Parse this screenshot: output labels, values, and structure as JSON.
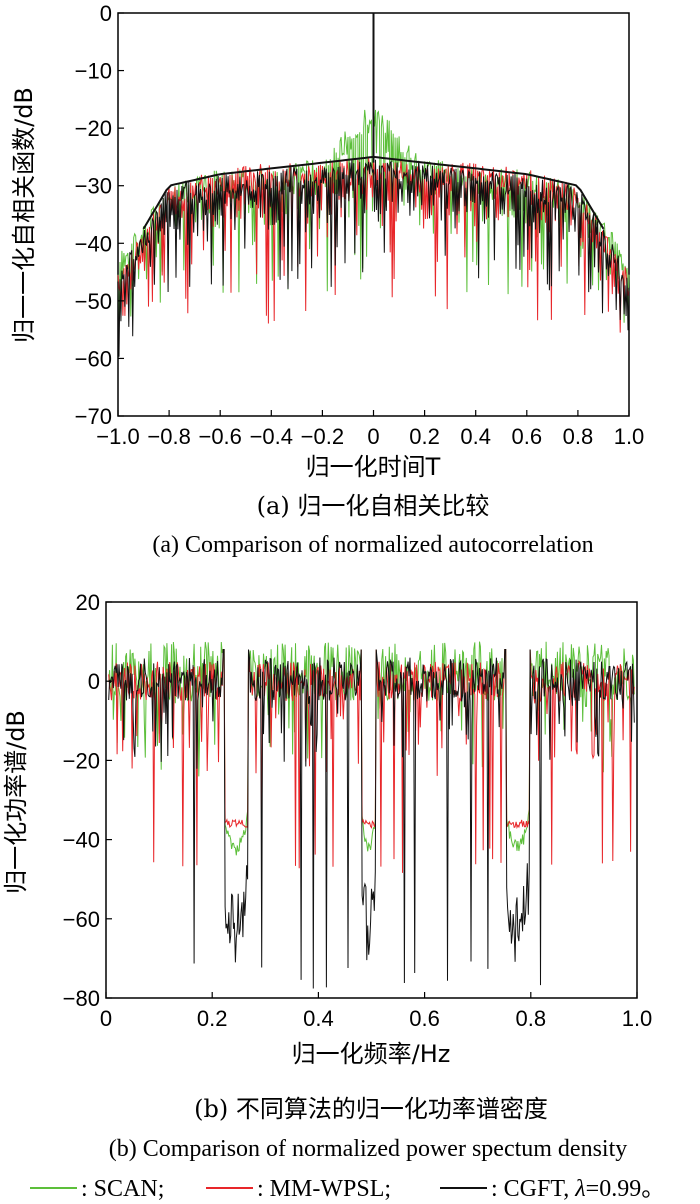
{
  "chart_data": [
    {
      "type": "line",
      "xlabel": "归一化时间T",
      "ylabel": "归一一化自相关函数/dB",
      "xlim": [
        -1.0,
        1.0
      ],
      "ylim": [
        -70,
        0
      ],
      "x_ticks": [
        "−1.0",
        "−0.8",
        "−0.6",
        "−0.4",
        "−0.2",
        "0",
        "0.2",
        "0.4",
        "0.6",
        "0.8",
        "1.0"
      ],
      "y_ticks": [
        "0",
        "−10",
        "−20",
        "−30",
        "−40",
        "−50",
        "−60",
        "−70"
      ],
      "caption_cn": "(a) 归一化自相关比较",
      "caption_en": "(a) Comparison of normalized autocorrelation",
      "series": [
        {
          "name": "SCAN",
          "color": "#5cbf3a",
          "x": [
            -1.0,
            -0.8,
            -0.6,
            -0.4,
            -0.2,
            0,
            0.2,
            0.4,
            0.6,
            0.8,
            1.0
          ],
          "upper": [
            -42,
            -30,
            -27,
            -27,
            -25,
            -15,
            -25,
            -27,
            -27,
            -30,
            -42
          ],
          "lower": [
            -58,
            -49,
            -49,
            -49,
            -52,
            -45,
            -53,
            -49,
            -49,
            -49,
            -58
          ]
        },
        {
          "name": "MM-WPSL",
          "color": "#e8262a",
          "x": [
            -1.0,
            -0.8,
            -0.6,
            -0.4,
            -0.2,
            0,
            0.2,
            0.4,
            0.6,
            0.8,
            1.0
          ],
          "upper": [
            -45,
            -30,
            -27,
            -26,
            -26,
            -25,
            -26,
            -26,
            -27,
            -30,
            -45
          ],
          "lower": [
            -58,
            -54,
            -54,
            -55,
            -52,
            -48,
            -52,
            -55,
            -54,
            -54,
            -58
          ]
        },
        {
          "name": "CGFT, λ=0.99",
          "color": "#111111",
          "x": [
            -1.0,
            -0.8,
            -0.6,
            -0.4,
            -0.2,
            0,
            0.2,
            0.4,
            0.6,
            0.8,
            1.0
          ],
          "upper": [
            -45,
            -30,
            -28,
            -27,
            -26,
            -25,
            -26,
            -27,
            -28,
            -30,
            -45
          ],
          "lower": [
            -60,
            -50,
            -48,
            -49,
            -48,
            -47,
            -48,
            -49,
            -48,
            -50,
            -60
          ],
          "peak": [
            0,
            0
          ]
        }
      ]
    },
    {
      "type": "line",
      "xlabel": "归一化频率/Hz",
      "ylabel": "归一化功率谱/dB",
      "xlim": [
        0,
        1.0
      ],
      "ylim": [
        -80,
        20
      ],
      "x_ticks": [
        "0",
        "0.2",
        "0.4",
        "0.6",
        "0.8",
        "1.0"
      ],
      "y_ticks": [
        "20",
        "0",
        "−20",
        "−40",
        "−60",
        "−80"
      ],
      "caption_cn": "(b) 不同算法的归一化功率谱密度",
      "caption_en": "(b) Comparison of normalized power spectum density",
      "stopbands": [
        [
          0.22,
          0.27
        ],
        [
          0.48,
          0.51
        ],
        [
          0.75,
          0.8
        ]
      ],
      "series": [
        {
          "name": "SCAN",
          "color": "#5cbf3a",
          "passband": [
            -5,
            10
          ],
          "stopband_level": -40
        },
        {
          "name": "MM-WPSL",
          "color": "#e8262a",
          "passband": [
            -5,
            5
          ],
          "stopband_level": -36,
          "dips_min": -50
        },
        {
          "name": "CGFT, λ=0.99",
          "color": "#111111",
          "passband": [
            -5,
            6
          ],
          "stopband_level": -55,
          "dips_min": -78
        }
      ]
    }
  ],
  "legend": [
    {
      "label": "SCAN;",
      "color": "#5cbf3a"
    },
    {
      "label": "MM-WPSL;",
      "color": "#e8262a"
    },
    {
      "label": "CGFT, ",
      "italic": "λ",
      "rest": "=0.99。",
      "color": "#111111"
    }
  ]
}
